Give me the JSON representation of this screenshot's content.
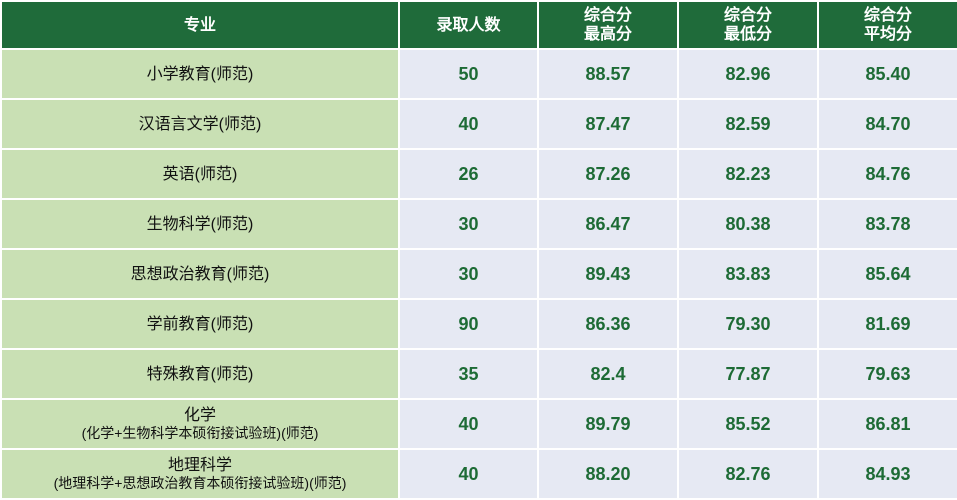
{
  "table": {
    "headers": [
      [
        "专业"
      ],
      [
        "录取人数"
      ],
      [
        "综合分",
        "最高分"
      ],
      [
        "综合分",
        "最低分"
      ],
      [
        "综合分",
        "平均分"
      ]
    ],
    "rows": [
      {
        "major": [
          "小学教育(师范)"
        ],
        "count": "50",
        "max": "88.57",
        "min": "82.96",
        "avg": "85.40"
      },
      {
        "major": [
          "汉语言文学(师范)"
        ],
        "count": "40",
        "max": "87.47",
        "min": "82.59",
        "avg": "84.70"
      },
      {
        "major": [
          "英语(师范)"
        ],
        "count": "26",
        "max": "87.26",
        "min": "82.23",
        "avg": "84.76"
      },
      {
        "major": [
          "生物科学(师范)"
        ],
        "count": "30",
        "max": "86.47",
        "min": "80.38",
        "avg": "83.78"
      },
      {
        "major": [
          "思想政治教育(师范)"
        ],
        "count": "30",
        "max": "89.43",
        "min": "83.83",
        "avg": "85.64"
      },
      {
        "major": [
          "学前教育(师范)"
        ],
        "count": "90",
        "max": "86.36",
        "min": "79.30",
        "avg": "81.69"
      },
      {
        "major": [
          "特殊教育(师范)"
        ],
        "count": "35",
        "max": "82.4",
        "min": "77.87",
        "avg": "79.63"
      },
      {
        "major": [
          "化学",
          "(化学+生物科学本硕衔接试验班)(师范)"
        ],
        "count": "40",
        "max": "89.79",
        "min": "85.52",
        "avg": "86.81"
      },
      {
        "major": [
          "地理科学",
          "(地理科学+思想政治教育本硕衔接试验班)(师范)"
        ],
        "count": "40",
        "max": "88.20",
        "min": "82.76",
        "avg": "84.93"
      }
    ]
  },
  "colors": {
    "header_bg": "#1f6b3a",
    "major_bg": "#c9e0b4",
    "value_bg": "#e6e9f3",
    "value_text": "#1d6b35"
  }
}
